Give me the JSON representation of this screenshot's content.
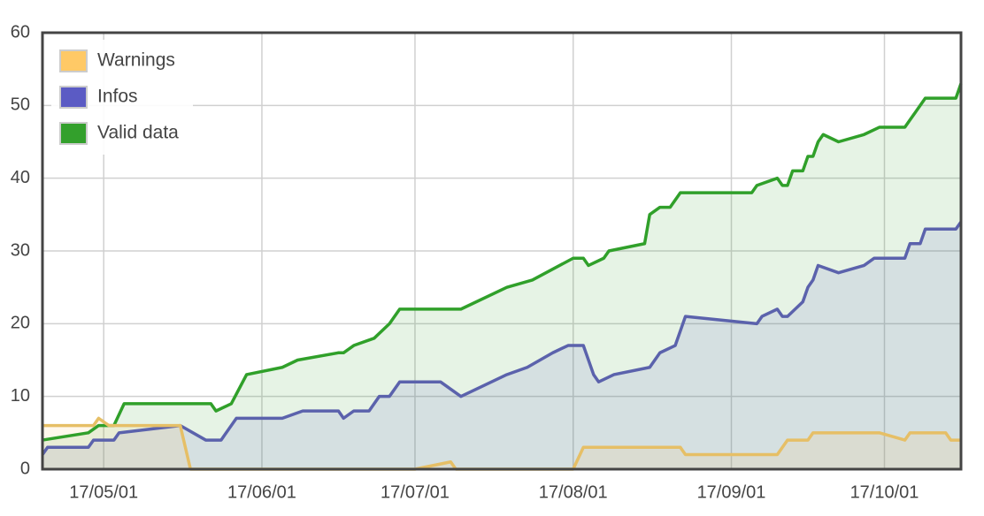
{
  "chart_data": {
    "type": "area",
    "xlim": [
      "17/04/19",
      "17/10/16"
    ],
    "xticks": [
      "17/05/01",
      "17/06/01",
      "17/07/01",
      "17/08/01",
      "17/09/01",
      "17/10/01"
    ],
    "ylim": [
      0,
      60
    ],
    "yticks": [
      0,
      10,
      20,
      30,
      40,
      50,
      60
    ],
    "grid": true,
    "legend": "upper left",
    "series": [
      {
        "name": "Warnings",
        "color": "#ffc966",
        "line_color": "#e6bf66",
        "x": [
          "17/04/19",
          "17/04/29",
          "17/04/30",
          "17/05/02",
          "17/05/16",
          "17/05/18",
          "17/07/01",
          "17/07/08",
          "17/07/09",
          "17/08/01",
          "17/08/03",
          "17/08/22",
          "17/08/23",
          "17/09/10",
          "17/09/12",
          "17/09/16",
          "17/09/17",
          "17/09/30",
          "17/10/05",
          "17/10/06",
          "17/10/13",
          "17/10/14",
          "17/10/16"
        ],
        "values": [
          6,
          6,
          7,
          6,
          6,
          0,
          0,
          1,
          0,
          0,
          3,
          3,
          2,
          2,
          4,
          4,
          5,
          5,
          4,
          5,
          5,
          4,
          4
        ]
      },
      {
        "name": "Infos",
        "color": "#5b5bc4",
        "line_color": "#5b62ac",
        "x": [
          "17/04/19",
          "17/04/20",
          "17/04/28",
          "17/04/29",
          "17/05/03",
          "17/05/04",
          "17/05/16",
          "17/05/21",
          "17/05/24",
          "17/05/27",
          "17/06/05",
          "17/06/09",
          "17/06/16",
          "17/06/17",
          "17/06/19",
          "17/06/22",
          "17/06/23",
          "17/06/24",
          "17/06/26",
          "17/06/28",
          "17/07/06",
          "17/07/08",
          "17/07/10",
          "17/07/19",
          "17/07/23",
          "17/07/28",
          "17/07/31",
          "17/08/03",
          "17/08/05",
          "17/08/06",
          "17/08/09",
          "17/08/16",
          "17/08/18",
          "17/08/21",
          "17/08/22",
          "17/08/23",
          "17/09/06",
          "17/09/07",
          "17/09/10",
          "17/09/11",
          "17/09/12",
          "17/09/15",
          "17/09/16",
          "17/09/17",
          "17/09/18",
          "17/09/22",
          "17/09/27",
          "17/09/29",
          "17/10/05",
          "17/10/06",
          "17/10/08",
          "17/10/09",
          "17/10/15",
          "17/10/16"
        ],
        "values": [
          2,
          3,
          3,
          4,
          4,
          5,
          6,
          4,
          4,
          7,
          7,
          8,
          8,
          7,
          8,
          8,
          9,
          10,
          10,
          12,
          12,
          11,
          10,
          13,
          14,
          16,
          17,
          17,
          13,
          12,
          13,
          14,
          16,
          17,
          19,
          21,
          20,
          21,
          22,
          21,
          21,
          23,
          25,
          26,
          28,
          27,
          28,
          29,
          29,
          31,
          31,
          33,
          33,
          34
        ]
      },
      {
        "name": "Valid data",
        "color": "#33a02c",
        "line_color": "#30a02a",
        "x": [
          "17/04/19",
          "17/04/28",
          "17/04/30",
          "17/05/03",
          "17/05/05",
          "17/05/22",
          "17/05/23",
          "17/05/26",
          "17/05/29",
          "17/06/05",
          "17/06/08",
          "17/06/16",
          "17/06/17",
          "17/06/19",
          "17/06/23",
          "17/06/26",
          "17/06/28",
          "17/07/10",
          "17/07/19",
          "17/07/24",
          "17/08/01",
          "17/08/03",
          "17/08/04",
          "17/08/07",
          "17/08/08",
          "17/08/15",
          "17/08/16",
          "17/08/18",
          "17/08/20",
          "17/08/22",
          "17/09/05",
          "17/09/06",
          "17/09/10",
          "17/09/11",
          "17/09/12",
          "17/09/13",
          "17/09/15",
          "17/09/16",
          "17/09/17",
          "17/09/18",
          "17/09/19",
          "17/09/22",
          "17/09/27",
          "17/09/30",
          "17/10/05",
          "17/10/06",
          "17/10/07",
          "17/10/08",
          "17/10/09",
          "17/10/15",
          "17/10/16"
        ],
        "values": [
          4,
          5,
          6,
          6,
          9,
          9,
          8,
          9,
          13,
          14,
          15,
          16,
          16,
          17,
          18,
          20,
          22,
          22,
          25,
          26,
          29,
          29,
          28,
          29,
          30,
          31,
          35,
          36,
          36,
          38,
          38,
          39,
          40,
          39,
          39,
          41,
          41,
          43,
          43,
          45,
          46,
          45,
          46,
          47,
          47,
          48,
          49,
          50,
          51,
          51,
          53
        ]
      }
    ]
  }
}
